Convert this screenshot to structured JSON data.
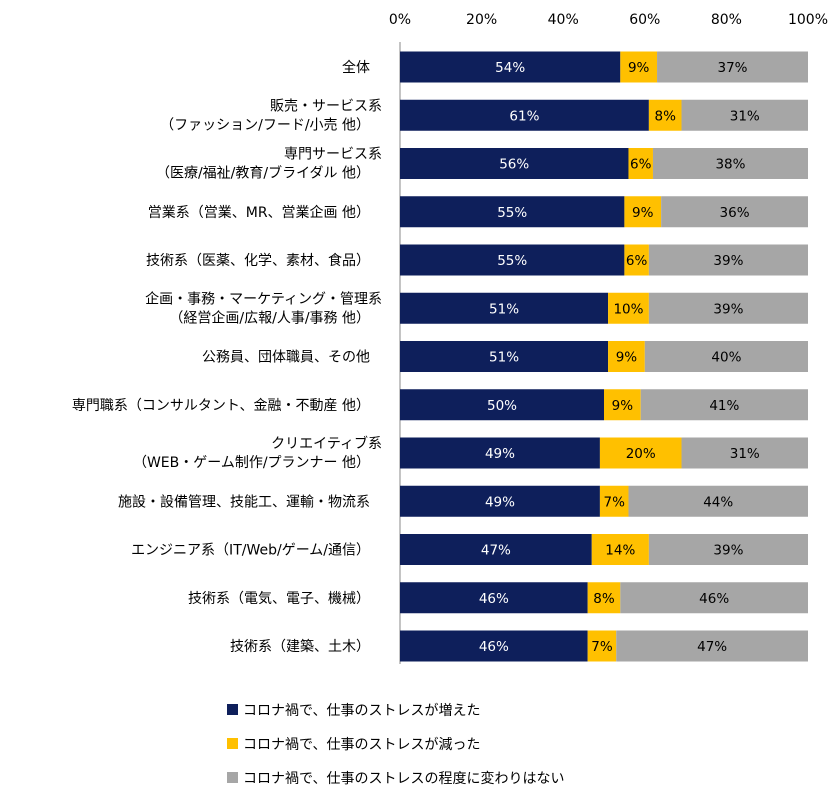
{
  "chart_data": {
    "type": "bar",
    "orientation": "horizontal",
    "stacked": true,
    "xlim": [
      0,
      100
    ],
    "x_ticks": [
      "0%",
      "20%",
      "40%",
      "60%",
      "80%",
      "100%"
    ],
    "x_axis_position": "top",
    "grid": false,
    "legend_position": "bottom",
    "categories": [
      [
        "全体"
      ],
      [
        "販売・サービス系",
        "（ファッション/フード/小売 他）"
      ],
      [
        "専門サービス系",
        "（医療/福祉/教育/ブライダル 他）"
      ],
      [
        "営業系（営業、MR、営業企画 他）"
      ],
      [
        "技術系（医薬、化学、素材、食品）"
      ],
      [
        "企画・事務・マーケティング・管理系",
        "（経営企画/広報/人事/事務 他）"
      ],
      [
        "公務員、団体職員、その他"
      ],
      [
        "専門職系（コンサルタント、金融・不動産 他）"
      ],
      [
        "クリエイティブ系",
        "（WEB・ゲーム制作/プランナー 他）"
      ],
      [
        "施設・設備管理、技能工、運輸・物流系"
      ],
      [
        "エンジニア系（IT/Web/ゲーム/通信）"
      ],
      [
        "技術系（電気、電子、機械）"
      ],
      [
        "技術系（建築、土木）"
      ]
    ],
    "series": [
      {
        "name": "コロナ禍で、仕事のストレスが増えた",
        "color": "#0e1f5b",
        "label_color": "#ffffff",
        "values": [
          54,
          61,
          56,
          55,
          55,
          51,
          51,
          50,
          49,
          49,
          47,
          46,
          46
        ]
      },
      {
        "name": "コロナ禍で、仕事のストレスが減った",
        "color": "#ffc000",
        "label_color": "#000000",
        "values": [
          9,
          8,
          6,
          9,
          6,
          10,
          9,
          9,
          20,
          7,
          14,
          8,
          7
        ]
      },
      {
        "name": "コロナ禍で、仕事のストレスの程度に変わりはない",
        "color": "#a6a6a6",
        "label_color": "#000000",
        "values": [
          37,
          31,
          38,
          36,
          39,
          39,
          40,
          41,
          31,
          44,
          39,
          46,
          47
        ]
      }
    ]
  }
}
